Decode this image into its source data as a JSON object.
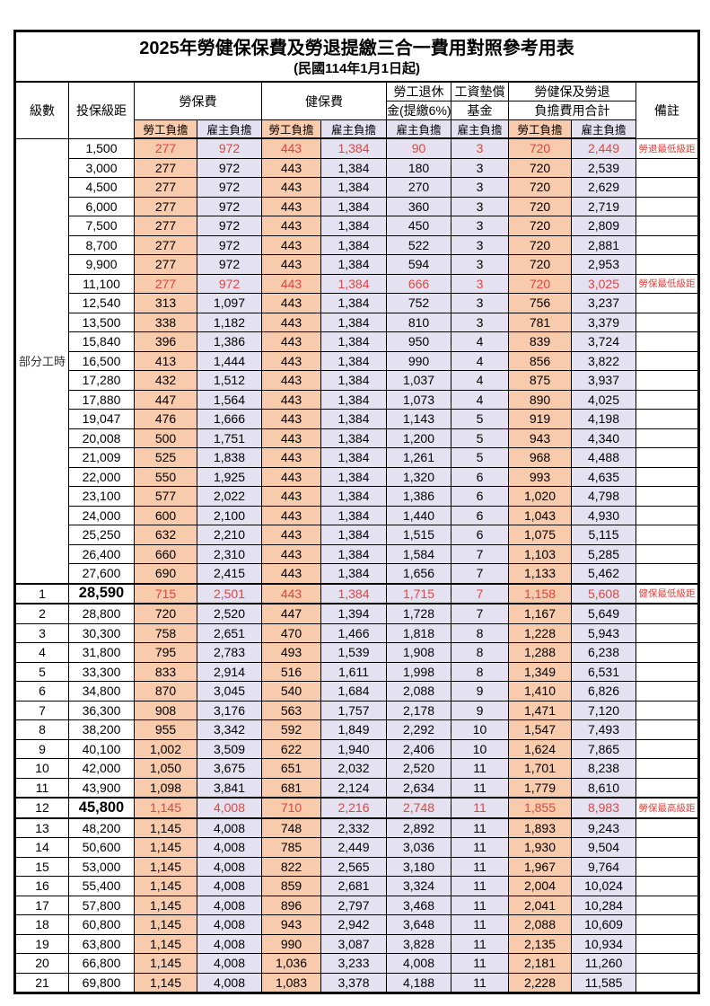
{
  "title": "2025年勞健保保費及勞退提繳三合一費用對照參考用表",
  "subtitle": "(民國114年1月1日起)",
  "header": {
    "level": "級數",
    "bracket": "投保級距",
    "labor_insurance": "勞保費",
    "health_insurance": "健保費",
    "pension_line1": "勞工退休",
    "pension_line2": "金(提繳6%)",
    "wage_fund_line1": "工資墊償",
    "wage_fund_line2": "基金",
    "total_line1": "勞健保及勞退",
    "total_line2": "負擔費用合計",
    "note": "備註",
    "employee": "勞工負擔",
    "employer": "雇主負擔"
  },
  "part_time_label": "部分工時",
  "part_time_rowspan": 23,
  "colors": {
    "employee_bg": "#F8CBAD",
    "employer_bg": "#E4E1F1",
    "highlight_red": "#E0453F",
    "border": "#000000"
  },
  "notes_legend": {
    "pension_min": "勞退最低級距",
    "labor_min": "勞保最低級距",
    "health_min": "健保最低級距",
    "labor_max": "勞保最高級距"
  },
  "rows": [
    [
      "",
      "1,500",
      "277",
      "972",
      "443",
      "1,384",
      "90",
      "3",
      "720",
      "2,449",
      "勞退最低級距",
      "red"
    ],
    [
      "",
      "3,000",
      "277",
      "972",
      "443",
      "1,384",
      "180",
      "3",
      "720",
      "2,539",
      "",
      ""
    ],
    [
      "",
      "4,500",
      "277",
      "972",
      "443",
      "1,384",
      "270",
      "3",
      "720",
      "2,629",
      "",
      ""
    ],
    [
      "",
      "6,000",
      "277",
      "972",
      "443",
      "1,384",
      "360",
      "3",
      "720",
      "2,719",
      "",
      ""
    ],
    [
      "",
      "7,500",
      "277",
      "972",
      "443",
      "1,384",
      "450",
      "3",
      "720",
      "2,809",
      "",
      ""
    ],
    [
      "",
      "8,700",
      "277",
      "972",
      "443",
      "1,384",
      "522",
      "3",
      "720",
      "2,881",
      "",
      ""
    ],
    [
      "",
      "9,900",
      "277",
      "972",
      "443",
      "1,384",
      "594",
      "3",
      "720",
      "2,953",
      "",
      ""
    ],
    [
      "",
      "11,100",
      "277",
      "972",
      "443",
      "1,384",
      "666",
      "3",
      "720",
      "3,025",
      "勞保最低級距",
      "red"
    ],
    [
      "",
      "12,540",
      "313",
      "1,097",
      "443",
      "1,384",
      "752",
      "3",
      "756",
      "3,237",
      "",
      ""
    ],
    [
      "",
      "13,500",
      "338",
      "1,182",
      "443",
      "1,384",
      "810",
      "3",
      "781",
      "3,379",
      "",
      ""
    ],
    [
      "",
      "15,840",
      "396",
      "1,386",
      "443",
      "1,384",
      "950",
      "4",
      "839",
      "3,724",
      "",
      ""
    ],
    [
      "",
      "16,500",
      "413",
      "1,444",
      "443",
      "1,384",
      "990",
      "4",
      "856",
      "3,822",
      "",
      ""
    ],
    [
      "",
      "17,280",
      "432",
      "1,512",
      "443",
      "1,384",
      "1,037",
      "4",
      "875",
      "3,937",
      "",
      ""
    ],
    [
      "",
      "17,880",
      "447",
      "1,564",
      "443",
      "1,384",
      "1,073",
      "4",
      "890",
      "4,025",
      "",
      ""
    ],
    [
      "",
      "19,047",
      "476",
      "1,666",
      "443",
      "1,384",
      "1,143",
      "5",
      "919",
      "4,198",
      "",
      ""
    ],
    [
      "",
      "20,008",
      "500",
      "1,751",
      "443",
      "1,384",
      "1,200",
      "5",
      "943",
      "4,340",
      "",
      ""
    ],
    [
      "",
      "21,009",
      "525",
      "1,838",
      "443",
      "1,384",
      "1,261",
      "5",
      "968",
      "4,488",
      "",
      ""
    ],
    [
      "",
      "22,000",
      "550",
      "1,925",
      "443",
      "1,384",
      "1,320",
      "6",
      "993",
      "4,635",
      "",
      ""
    ],
    [
      "",
      "23,100",
      "577",
      "2,022",
      "443",
      "1,384",
      "1,386",
      "6",
      "1,020",
      "4,798",
      "",
      ""
    ],
    [
      "",
      "24,000",
      "600",
      "2,100",
      "443",
      "1,384",
      "1,440",
      "6",
      "1,043",
      "4,930",
      "",
      ""
    ],
    [
      "",
      "25,250",
      "632",
      "2,210",
      "443",
      "1,384",
      "1,515",
      "6",
      "1,075",
      "5,115",
      "",
      ""
    ],
    [
      "",
      "26,400",
      "660",
      "2,310",
      "443",
      "1,384",
      "1,584",
      "7",
      "1,103",
      "5,285",
      "",
      ""
    ],
    [
      "",
      "27,600",
      "690",
      "2,415",
      "443",
      "1,384",
      "1,656",
      "7",
      "1,133",
      "5,462",
      "",
      ""
    ],
    [
      "1",
      "28,590",
      "715",
      "2,501",
      "443",
      "1,384",
      "1,715",
      "7",
      "1,158",
      "5,608",
      "健保最低級距",
      "red thick big"
    ],
    [
      "2",
      "28,800",
      "720",
      "2,520",
      "447",
      "1,394",
      "1,728",
      "7",
      "1,167",
      "5,649",
      "",
      ""
    ],
    [
      "3",
      "30,300",
      "758",
      "2,651",
      "470",
      "1,466",
      "1,818",
      "8",
      "1,228",
      "5,943",
      "",
      ""
    ],
    [
      "4",
      "31,800",
      "795",
      "2,783",
      "493",
      "1,539",
      "1,908",
      "8",
      "1,288",
      "6,238",
      "",
      ""
    ],
    [
      "5",
      "33,300",
      "833",
      "2,914",
      "516",
      "1,611",
      "1,998",
      "8",
      "1,349",
      "6,531",
      "",
      ""
    ],
    [
      "6",
      "34,800",
      "870",
      "3,045",
      "540",
      "1,684",
      "2,088",
      "9",
      "1,410",
      "6,826",
      "",
      ""
    ],
    [
      "7",
      "36,300",
      "908",
      "3,176",
      "563",
      "1,757",
      "2,178",
      "9",
      "1,471",
      "7,120",
      "",
      ""
    ],
    [
      "8",
      "38,200",
      "955",
      "3,342",
      "592",
      "1,849",
      "2,292",
      "10",
      "1,547",
      "7,493",
      "",
      ""
    ],
    [
      "9",
      "40,100",
      "1,002",
      "3,509",
      "622",
      "1,940",
      "2,406",
      "10",
      "1,624",
      "7,865",
      "",
      ""
    ],
    [
      "10",
      "42,000",
      "1,050",
      "3,675",
      "651",
      "2,032",
      "2,520",
      "11",
      "1,701",
      "8,238",
      "",
      ""
    ],
    [
      "11",
      "43,900",
      "1,098",
      "3,841",
      "681",
      "2,124",
      "2,634",
      "11",
      "1,779",
      "8,610",
      "",
      ""
    ],
    [
      "12",
      "45,800",
      "1,145",
      "4,008",
      "710",
      "2,216",
      "2,748",
      "11",
      "1,855",
      "8,983",
      "勞保最高級距",
      "red thick big"
    ],
    [
      "13",
      "48,200",
      "1,145",
      "4,008",
      "748",
      "2,332",
      "2,892",
      "11",
      "1,893",
      "9,243",
      "",
      ""
    ],
    [
      "14",
      "50,600",
      "1,145",
      "4,008",
      "785",
      "2,449",
      "3,036",
      "11",
      "1,930",
      "9,504",
      "",
      ""
    ],
    [
      "15",
      "53,000",
      "1,145",
      "4,008",
      "822",
      "2,565",
      "3,180",
      "11",
      "1,967",
      "9,764",
      "",
      ""
    ],
    [
      "16",
      "55,400",
      "1,145",
      "4,008",
      "859",
      "2,681",
      "3,324",
      "11",
      "2,004",
      "10,024",
      "",
      ""
    ],
    [
      "17",
      "57,800",
      "1,145",
      "4,008",
      "896",
      "2,797",
      "3,468",
      "11",
      "2,041",
      "10,284",
      "",
      ""
    ],
    [
      "18",
      "60,800",
      "1,145",
      "4,008",
      "943",
      "2,942",
      "3,648",
      "11",
      "2,088",
      "10,609",
      "",
      ""
    ],
    [
      "19",
      "63,800",
      "1,145",
      "4,008",
      "990",
      "3,087",
      "3,828",
      "11",
      "2,135",
      "10,934",
      "",
      ""
    ],
    [
      "20",
      "66,800",
      "1,145",
      "4,008",
      "1,036",
      "3,233",
      "4,008",
      "11",
      "2,181",
      "11,260",
      "",
      ""
    ],
    [
      "21",
      "69,800",
      "1,145",
      "4,008",
      "1,083",
      "3,378",
      "4,188",
      "11",
      "2,228",
      "11,585",
      "",
      ""
    ]
  ]
}
